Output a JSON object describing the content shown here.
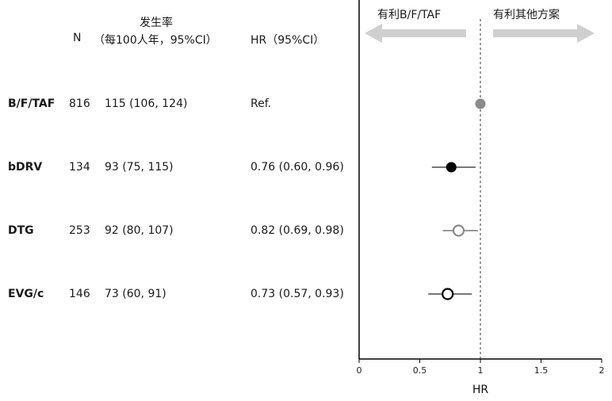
{
  "header": {
    "n": "N",
    "rate_line1": "发生率",
    "rate_line2": "（每100人年，95%CI）",
    "hr": "HR（95%CI）",
    "favor_left": "有利B/F/TAF",
    "favor_right": "有利其他方案"
  },
  "rows": [
    {
      "label": "B/F/TAF",
      "n": "816",
      "rate": "115 (106, 124)",
      "hr": "Ref."
    },
    {
      "label": "bDRV",
      "n": "134",
      "rate": "93 (75, 115)",
      "hr": "0.76 (0.60, 0.96)"
    },
    {
      "label": "DTG",
      "n": "253",
      "rate": "92 (80, 107)",
      "hr": "0.82 (0.69, 0.98)"
    },
    {
      "label": "EVG/c",
      "n": "146",
      "rate": "73 (60, 91)",
      "hr": "0.73 (0.57, 0.93)"
    }
  ],
  "chart_data": {
    "type": "scatter",
    "subtype": "forest-plot",
    "xlabel": "HR",
    "xlim": [
      0,
      2
    ],
    "xticks": [
      "0",
      "0.5",
      "1",
      "1.5",
      "2"
    ],
    "reference_line": 1,
    "points": [
      {
        "category": "B/F/TAF",
        "hr": 1.0,
        "low": null,
        "high": null,
        "marker": "filled-gray"
      },
      {
        "category": "bDRV",
        "hr": 0.76,
        "low": 0.6,
        "high": 0.96,
        "marker": "filled-black"
      },
      {
        "category": "DTG",
        "hr": 0.82,
        "low": 0.69,
        "high": 0.98,
        "marker": "open-gray"
      },
      {
        "category": "EVG/c",
        "hr": 0.73,
        "low": 0.57,
        "high": 0.93,
        "marker": "open-black"
      }
    ],
    "colors": {
      "black": "#000000",
      "gray": "#8a8a8a",
      "arrow": "#cfcfcf"
    }
  }
}
